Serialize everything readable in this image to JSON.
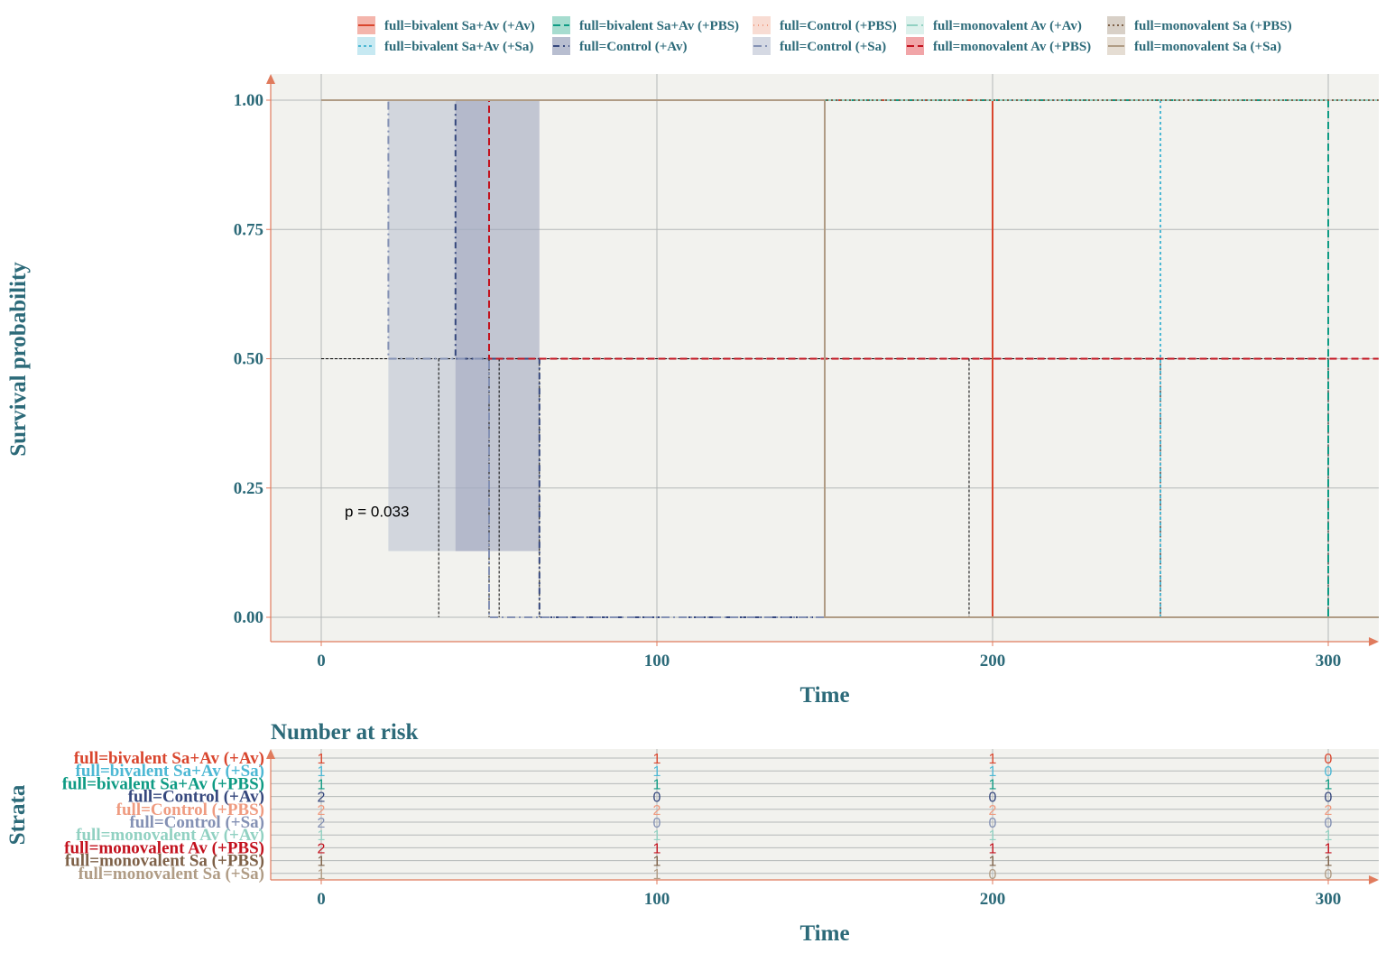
{
  "colors": {
    "axis_text": "#2c6a79",
    "axis_line": "#e07b5d",
    "panel_bg": "#f2f2ee",
    "grid": "#b4b8b8"
  },
  "legend": {
    "items": [
      {
        "label": "full=bivalent  Sa+Av (+Av)",
        "color": "#d9462e",
        "fill": "#f4b5ac",
        "dash": "solid"
      },
      {
        "label": "full=bivalent  Sa+Av (+Sa)",
        "color": "#4db8d4",
        "fill": "#c7e9f2",
        "dash": "3,3"
      },
      {
        "label": "full=bivalent Sa+Av (+PBS)",
        "color": "#0e9b84",
        "fill": "#a6dccf",
        "dash": "8,4"
      },
      {
        "label": "full=Control (+Av)",
        "color": "#35477d",
        "fill": "#b8bed0",
        "dash": "7,4,2,4"
      },
      {
        "label": "full=Control (+PBS)",
        "color": "#ef9b80",
        "fill": "#f8dcd3",
        "dash": "1,4"
      },
      {
        "label": "full=Control (+Sa)",
        "color": "#8491b4",
        "fill": "#d5d9e3",
        "dash": "9,4,2,4"
      },
      {
        "label": "full=monovalent Av  (+Av)",
        "color": "#91d1c2",
        "fill": "#ddf1ec",
        "dash": "12,4"
      },
      {
        "label": "full=monovalent Av  (+PBS)",
        "color": "#c3121e",
        "fill": "#f1a5a8",
        "dash": "8,4"
      },
      {
        "label": "full=monovalent Sa  (+PBS)",
        "color": "#7e6148",
        "fill": "#d8d0c7",
        "dash": "2,3"
      },
      {
        "label": "full=monovalent Sa  (+Sa)",
        "color": "#b09c85",
        "fill": "#e5ddd3",
        "dash": "solid"
      }
    ]
  },
  "chart_data": [
    {
      "type": "line",
      "subtype": "kaplan-meier",
      "xlabel": "Time",
      "ylabel": "Survival probability",
      "xlim": [
        -15,
        315
      ],
      "ylim": [
        -0.05,
        1.05
      ],
      "xticks": [
        0,
        100,
        200,
        300
      ],
      "yticks": [
        0.0,
        0.25,
        0.5,
        0.75,
        1.0
      ],
      "ytick_labels": [
        "0.00",
        "0.25",
        "0.50",
        "0.75",
        "1.00"
      ],
      "grid": true,
      "legend_position": "top",
      "annotation": "p = 0.033",
      "annotation_at": {
        "x": 7,
        "y": 0.195
      },
      "median_line_y": 0.5,
      "median_drops_x": [
        35,
        50,
        53,
        65,
        150,
        193,
        200,
        250,
        300
      ],
      "confidence_bands": [
        {
          "series": "full=Control (+Sa)",
          "x0": 20,
          "x1": 50,
          "lower": 0.128,
          "upper": 1.0
        },
        {
          "series": "full=Control (+Av)",
          "x0": 40,
          "x1": 65,
          "lower": 0.128,
          "upper": 1.0
        }
      ],
      "series": [
        {
          "name": "full=bivalent  Sa+Av (+Av)",
          "x": [
            0,
            200,
            200,
            315
          ],
          "y": [
            1.0,
            1.0,
            0.0,
            0.0
          ]
        },
        {
          "name": "full=bivalent  Sa+Av (+Sa)",
          "x": [
            0,
            250,
            250,
            315
          ],
          "y": [
            1.0,
            1.0,
            0.0,
            0.0
          ]
        },
        {
          "name": "full=bivalent Sa+Av (+PBS)",
          "x": [
            0,
            300,
            300,
            315
          ],
          "y": [
            1.0,
            1.0,
            0.0,
            0.0
          ]
        },
        {
          "name": "full=Control (+Av)",
          "x": [
            0,
            40,
            40,
            65,
            65,
            315
          ],
          "y": [
            1.0,
            1.0,
            0.5,
            0.5,
            0.0,
            0.0
          ]
        },
        {
          "name": "full=Control (+PBS)",
          "x": [
            0,
            315
          ],
          "y": [
            1.0,
            1.0
          ]
        },
        {
          "name": "full=Control (+Sa)",
          "x": [
            0,
            20,
            20,
            50,
            50,
            315
          ],
          "y": [
            1.0,
            1.0,
            0.5,
            0.5,
            0.0,
            0.0
          ]
        },
        {
          "name": "full=monovalent Av  (+Av)",
          "x": [
            0,
            315
          ],
          "y": [
            1.0,
            1.0
          ]
        },
        {
          "name": "full=monovalent Av  (+PBS)",
          "x": [
            0,
            50,
            50,
            315
          ],
          "y": [
            1.0,
            1.0,
            0.5,
            0.5
          ]
        },
        {
          "name": "full=monovalent Sa  (+PBS)",
          "x": [
            0,
            315
          ],
          "y": [
            1.0,
            1.0
          ]
        },
        {
          "name": "full=monovalent Sa  (+Sa)",
          "x": [
            0,
            150,
            150,
            315
          ],
          "y": [
            1.0,
            1.0,
            0.0,
            0.0
          ]
        }
      ]
    },
    {
      "type": "table",
      "title": "Number at risk",
      "xlabel": "Time",
      "ylabel": "Strata",
      "xticks": [
        0,
        100,
        200,
        300
      ],
      "rows": [
        {
          "label": "full=bivalent  Sa+Av (+Av)",
          "values": [
            1,
            1,
            1,
            0
          ]
        },
        {
          "label": "full=bivalent  Sa+Av (+Sa)",
          "values": [
            1,
            1,
            1,
            0
          ]
        },
        {
          "label": "full=bivalent  Sa+Av (+PBS)",
          "values": [
            1,
            1,
            1,
            1
          ]
        },
        {
          "label": "full=Control  (+Av)",
          "values": [
            2,
            0,
            0,
            0
          ]
        },
        {
          "label": "full=Control  (+PBS)",
          "values": [
            2,
            2,
            2,
            2
          ]
        },
        {
          "label": "full=Control  (+Sa)",
          "values": [
            2,
            0,
            0,
            0
          ]
        },
        {
          "label": "full=monovalent  Av (+Av)",
          "values": [
            1,
            1,
            1,
            1
          ]
        },
        {
          "label": "full=monovalent  Av (+PBS)",
          "values": [
            2,
            1,
            1,
            1
          ]
        },
        {
          "label": "full=monovalent  Sa (+PBS)",
          "values": [
            1,
            1,
            1,
            1
          ]
        },
        {
          "label": "full=monovalent  Sa (+Sa)",
          "values": [
            1,
            1,
            0,
            0
          ]
        }
      ]
    }
  ]
}
